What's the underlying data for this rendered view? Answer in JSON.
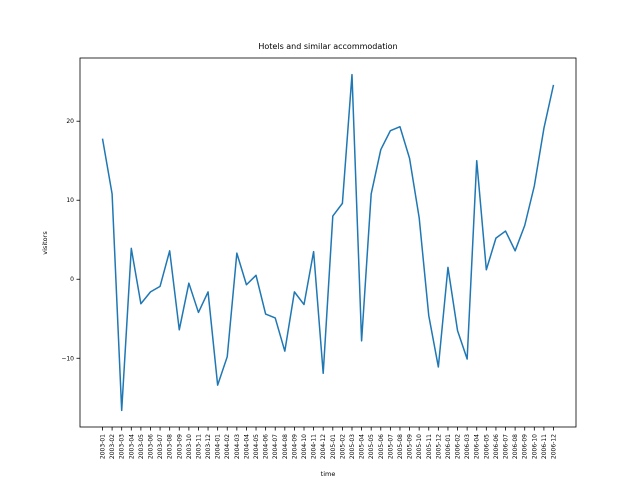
{
  "chart_data": {
    "type": "line",
    "title": "Hotels and similar accommodation",
    "xlabel": "time",
    "ylabel": "visitors",
    "categories": [
      "2003-01",
      "2003-02",
      "2003-03",
      "2003-04",
      "2003-05",
      "2003-06",
      "2003-07",
      "2003-08",
      "2003-09",
      "2003-10",
      "2003-11",
      "2003-12",
      "2004-01",
      "2004-02",
      "2004-03",
      "2004-04",
      "2004-05",
      "2004-06",
      "2004-07",
      "2004-08",
      "2004-09",
      "2004-10",
      "2004-11",
      "2004-12",
      "2005-01",
      "2005-02",
      "2005-03",
      "2005-04",
      "2005-05",
      "2005-06",
      "2005-07",
      "2005-08",
      "2005-09",
      "2005-10",
      "2005-11",
      "2005-12",
      "2006-01",
      "2006-02",
      "2006-03",
      "2006-04",
      "2006-05",
      "2006-06",
      "2006-07",
      "2006-08",
      "2006-09",
      "2006-10",
      "2006-11",
      "2006-12"
    ],
    "series": [
      {
        "values": [
          17.8,
          10.8,
          -16.6,
          3.9,
          -3.1,
          -1.6,
          -0.9,
          3.6,
          -6.4,
          -0.5,
          -4.2,
          -1.6,
          -13.4,
          -9.8,
          3.3,
          -0.7,
          0.5,
          -4.4,
          -4.9,
          -9.1,
          -1.6,
          -3.2,
          3.5,
          -11.9,
          8.0,
          9.6,
          25.9,
          -7.8,
          10.8,
          16.4,
          18.8,
          19.3,
          15.3,
          7.8,
          -4.6,
          -11.1,
          1.5,
          -6.5,
          -10.1,
          15.0,
          1.2,
          5.2,
          6.1,
          3.6,
          6.8,
          11.8,
          19.1,
          24.6
        ],
        "color": "#1f77b4"
      }
    ],
    "yticks": [
      -10,
      0,
      10,
      20
    ],
    "ytick_labels": [
      "−10",
      "0",
      "10",
      "20"
    ],
    "ylim": [
      -18.7,
      28.0
    ],
    "grid": false
  }
}
